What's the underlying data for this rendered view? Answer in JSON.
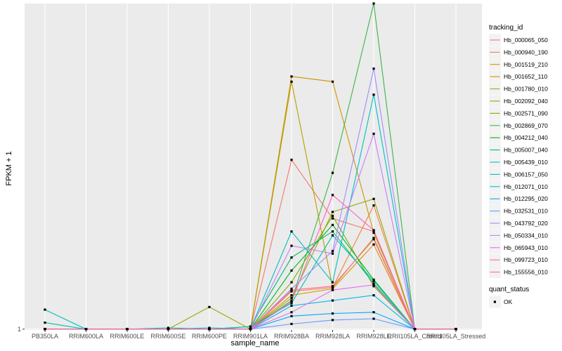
{
  "chart_data": {
    "type": "line",
    "xlabel": "sample_name",
    "ylabel": "FPKM + 1",
    "categories": [
      "PB350LA",
      "RRIM600LA",
      "RRIM600LE",
      "RRIM600SE",
      "RRIM600PE",
      "RRIM901LA",
      "RRIM928BA",
      "RRIM928LA",
      "RRIM928LE",
      "RRII105LA_Control",
      "RRII105LA_Stressed"
    ],
    "y_ticks": [
      "1"
    ],
    "y_axis_note": "unlabeled scale; values are relative levels on the plotted axis",
    "ylim": [
      0.94,
      26
    ],
    "grid": true,
    "legend_position": "right",
    "legend_title": "tracking_id",
    "shape_legend_title": "quant_status",
    "shape_legend_item": "OK",
    "series": [
      {
        "name": "Hb_000065_050",
        "color": "#F8766D",
        "values": [
          1.0,
          1.0,
          1.0,
          1.0,
          1.0,
          1.0,
          14.0,
          9.5,
          8.5,
          1.0,
          1.0
        ]
      },
      {
        "name": "Hb_000940_190",
        "color": "#EE8044",
        "values": [
          1.0,
          1.0,
          1.0,
          1.0,
          1.0,
          1.0,
          3.9,
          4.2,
          10.5,
          1.0,
          1.0
        ]
      },
      {
        "name": "Hb_001519_210",
        "color": "#E08B00",
        "values": [
          1.0,
          1.0,
          1.0,
          1.0,
          1.0,
          1.0,
          3.6,
          4.1,
          7.5,
          1.0,
          1.0
        ]
      },
      {
        "name": "Hb_001652_110",
        "color": "#CD9600",
        "values": [
          1.0,
          1.0,
          1.0,
          1.0,
          1.0,
          1.0,
          20.4,
          20.0,
          8.4,
          1.0,
          1.0
        ]
      },
      {
        "name": "Hb_001780_010",
        "color": "#B79F00",
        "values": [
          1.0,
          1.0,
          1.0,
          1.0,
          1.0,
          1.0,
          20.0,
          4.2,
          8.0,
          1.0,
          1.0
        ]
      },
      {
        "name": "Hb_002092_040",
        "color": "#9CA700",
        "values": [
          1.0,
          1.0,
          1.0,
          1.0,
          2.7,
          1.0,
          3.4,
          10.0,
          11.0,
          1.0,
          1.0
        ]
      },
      {
        "name": "Hb_002571_090",
        "color": "#7CAE00",
        "values": [
          1.0,
          1.0,
          1.0,
          1.0,
          1.0,
          1.0,
          4.6,
          9.7,
          4.3,
          1.0,
          1.0
        ]
      },
      {
        "name": "Hb_002869_070",
        "color": "#3CB44B",
        "values": [
          1.0,
          1.0,
          1.0,
          1.0,
          1.0,
          1.0,
          3.2,
          13.0,
          26.0,
          1.0,
          1.0
        ]
      },
      {
        "name": "Hb_004212_040",
        "color": "#00B81F",
        "values": [
          1.0,
          1.0,
          1.0,
          1.0,
          1.0,
          1.0,
          5.5,
          9.0,
          4.8,
          1.0,
          1.0
        ]
      },
      {
        "name": "Hb_005007_040",
        "color": "#00BE6C",
        "values": [
          1.0,
          1.0,
          1.0,
          1.0,
          1.0,
          1.2,
          6.5,
          8.5,
          4.5,
          1.0,
          1.0
        ]
      },
      {
        "name": "Hb_005439_010",
        "color": "#00C1A9",
        "values": [
          1.5,
          1.0,
          1.0,
          1.1,
          1.0,
          1.2,
          3.0,
          8.2,
          4.7,
          1.0,
          1.0
        ]
      },
      {
        "name": "Hb_006157_050",
        "color": "#00BFC4",
        "values": [
          2.5,
          1.0,
          1.0,
          1.0,
          1.1,
          1.0,
          8.5,
          4.6,
          19.0,
          1.0,
          1.0
        ]
      },
      {
        "name": "Hb_012071_010",
        "color": "#00B8E7",
        "values": [
          1.0,
          1.0,
          1.0,
          1.0,
          1.0,
          1.0,
          2.8,
          3.2,
          3.6,
          1.0,
          1.0
        ]
      },
      {
        "name": "Hb_012295_020",
        "color": "#00A9FF",
        "values": [
          1.0,
          1.0,
          1.0,
          1.0,
          1.0,
          1.0,
          2.0,
          2.2,
          2.3,
          1.0,
          1.0
        ]
      },
      {
        "name": "Hb_032531_010",
        "color": "#619CFF",
        "values": [
          1.0,
          1.0,
          1.0,
          1.0,
          1.0,
          1.0,
          1.4,
          1.7,
          1.8,
          1.0,
          1.0
        ]
      },
      {
        "name": "Hb_043792_020",
        "color": "#9F8CFF",
        "values": [
          1.0,
          1.0,
          1.0,
          1.0,
          1.0,
          1.0,
          4.1,
          7.0,
          21.0,
          1.0,
          1.0
        ]
      },
      {
        "name": "Hb_050334_010",
        "color": "#C77CFF",
        "values": [
          1.0,
          1.0,
          1.0,
          1.0,
          1.0,
          1.0,
          7.4,
          6.8,
          16.0,
          1.0,
          1.0
        ]
      },
      {
        "name": "Hb_065943_010",
        "color": "#E76BF3",
        "values": [
          1.0,
          1.0,
          1.0,
          1.0,
          1.0,
          1.0,
          2.3,
          4.0,
          4.4,
          1.0,
          1.0
        ]
      },
      {
        "name": "Hb_099723_010",
        "color": "#FF61C3",
        "values": [
          1.0,
          1.0,
          1.0,
          1.0,
          1.0,
          1.0,
          3.1,
          11.3,
          8.6,
          1.0,
          1.0
        ]
      },
      {
        "name": "Hb_155556_010",
        "color": "#FF6C91",
        "values": [
          1.0,
          1.0,
          1.0,
          1.0,
          1.0,
          1.0,
          4.0,
          4.3,
          7.9,
          1.0,
          1.0
        ]
      }
    ]
  }
}
